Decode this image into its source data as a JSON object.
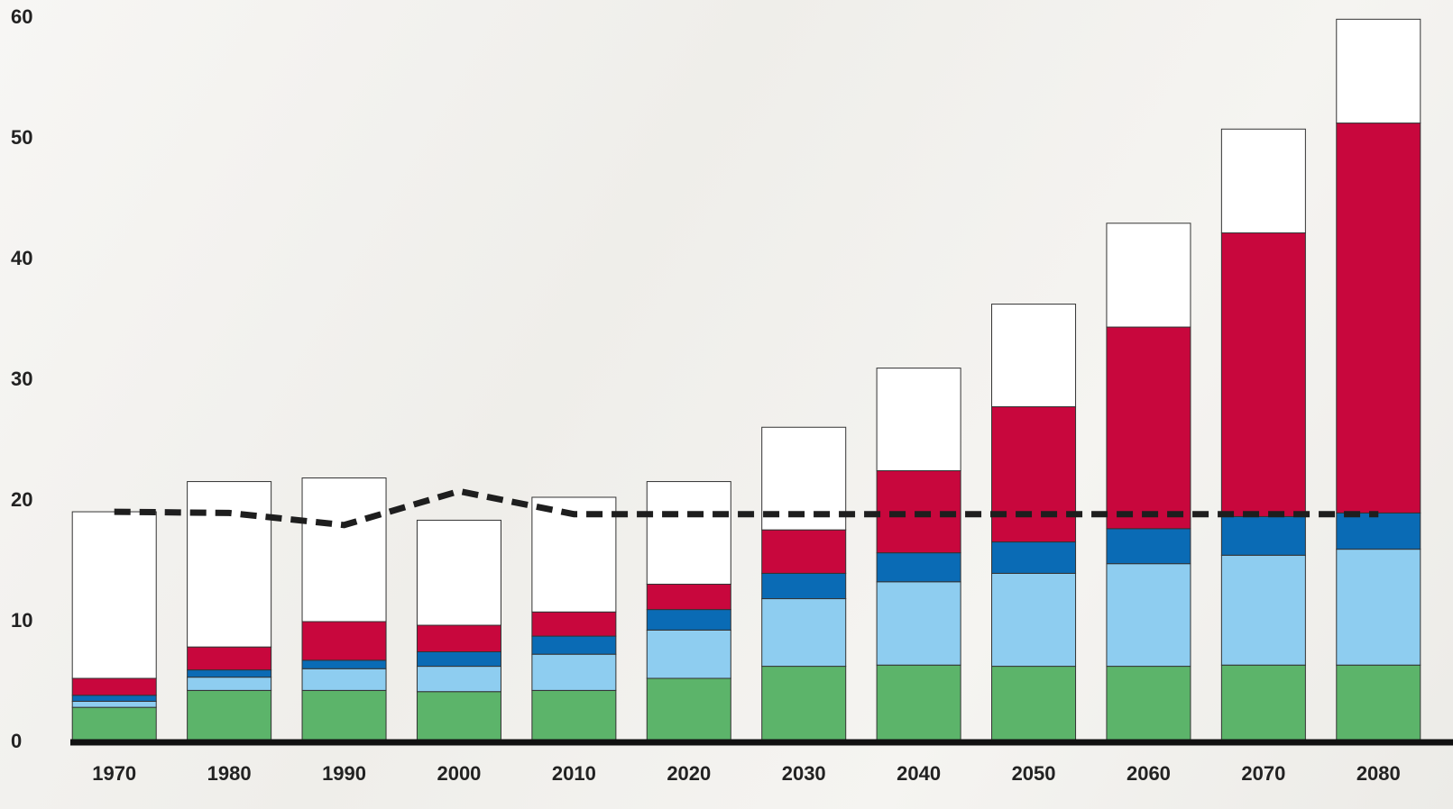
{
  "chart_data": {
    "type": "bar",
    "stacked": true,
    "categories": [
      "1970",
      "1980",
      "1990",
      "2000",
      "2010",
      "2020",
      "2030",
      "2040",
      "2050",
      "2060",
      "2070",
      "2080"
    ],
    "series": [
      {
        "color": "#5cb46a",
        "values": [
          2.9,
          4.3,
          4.3,
          4.2,
          4.3,
          5.3,
          6.3,
          6.4,
          6.3,
          6.3,
          6.4,
          6.4
        ]
      },
      {
        "color": "#8ecdf0",
        "values": [
          0.5,
          1.1,
          1.8,
          2.1,
          3.0,
          4.0,
          5.6,
          6.9,
          7.7,
          8.5,
          9.1,
          9.6
        ]
      },
      {
        "color": "#0a6bb5",
        "values": [
          0.5,
          0.6,
          0.7,
          1.2,
          1.5,
          1.7,
          2.1,
          2.4,
          2.6,
          2.9,
          3.2,
          3.0
        ]
      },
      {
        "color": "#c8073d",
        "values": [
          1.4,
          1.9,
          3.2,
          2.2,
          2.0,
          2.1,
          3.6,
          6.8,
          11.2,
          16.7,
          23.5,
          32.3
        ]
      },
      {
        "color": "#ffffff",
        "values": [
          13.8,
          13.7,
          11.9,
          8.7,
          9.5,
          8.5,
          8.5,
          8.5,
          8.5,
          8.6,
          8.6,
          8.6
        ]
      },
      {
        "type": "line",
        "dashed": true,
        "color": "#1e1e1e",
        "values": [
          19.1,
          19.0,
          18.0,
          20.8,
          18.9,
          18.9,
          18.9,
          18.9,
          18.9,
          18.9,
          18.9,
          18.9
        ]
      }
    ],
    "ylim": [
      0,
      60
    ],
    "yticks": [
      0,
      10,
      20,
      30,
      40,
      50,
      60
    ],
    "grid": false
  }
}
